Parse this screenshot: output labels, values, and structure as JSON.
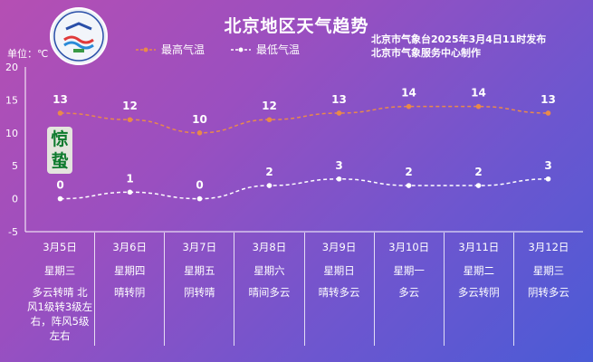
{
  "header": {
    "title": "北京地区天气趋势",
    "issuer_line1": "北京市气象台2025年3月4日11时发布",
    "issuer_line2": "北京市气象服务中心制作",
    "unit_label": "单位：℃",
    "special_term": "惊蛰"
  },
  "colors": {
    "high": "#e98a4a",
    "low": "#ffffff"
  },
  "chart_data": {
    "type": "line",
    "categories": [
      "3月5日",
      "3月6日",
      "3月7日",
      "3月8日",
      "3月9日",
      "3月10日",
      "3月11日",
      "3月12日"
    ],
    "series": [
      {
        "name": "最高气温",
        "values": [
          13,
          12,
          10,
          12,
          13,
          14,
          14,
          13
        ]
      },
      {
        "name": "最低气温",
        "values": [
          0,
          1,
          0,
          2,
          3,
          2,
          2,
          3
        ]
      }
    ],
    "ylim": [
      -5,
      20
    ],
    "yticks": [
      -5,
      0,
      5,
      10,
      15,
      20
    ],
    "grid": false,
    "legend": "top"
  },
  "days": [
    {
      "date": "3月5日",
      "weekday": "星期三",
      "weather": "多云转晴 北风1级转3级左右，阵风5级左右"
    },
    {
      "date": "3月6日",
      "weekday": "星期四",
      "weather": "晴转阴"
    },
    {
      "date": "3月7日",
      "weekday": "星期五",
      "weather": "阴转晴"
    },
    {
      "date": "3月8日",
      "weekday": "星期六",
      "weather": "晴间多云"
    },
    {
      "date": "3月9日",
      "weekday": "星期日",
      "weather": "晴转多云"
    },
    {
      "date": "3月10日",
      "weekday": "星期一",
      "weather": "多云"
    },
    {
      "date": "3月11日",
      "weekday": "星期二",
      "weather": "多云转阴"
    },
    {
      "date": "3月12日",
      "weekday": "星期三",
      "weather": "阴转多云"
    }
  ]
}
